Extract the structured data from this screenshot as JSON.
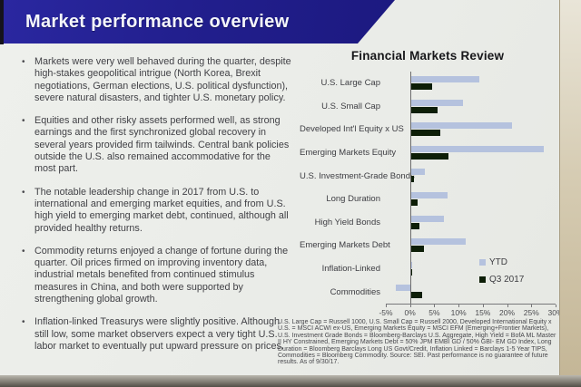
{
  "slide": {
    "title": "Market performance overview",
    "bullets": [
      "Markets were very well behaved during the quarter, despite high-stakes geopolitical intrigue (North Korea, Brexit negotiations, German elections, U.S. political dysfunction), severe natural disasters, and tighter U.S. monetary policy.",
      "Equities and other risky assets performed well, as strong earnings and the first synchronized global recovery in several years provided firm tailwinds. Central bank policies outside the U.S. also remained accommodative for the most part.",
      "The notable leadership change in 2017 from U.S. to international and emerging market equities, and from U.S. high yield to emerging market debt, continued, although all provided healthy returns.",
      "Commodity returns enjoyed a change of fortune during the quarter. Oil prices firmed on improving inventory data, industrial metals benefited from continued stimulus measures in China, and both were supported by strengthening global growth.",
      "Inflation-linked Treasurys were slightly positive. Although still low, some market observers expect a very tight U.S. labor market to eventually put upward pressure on prices."
    ]
  },
  "colors": {
    "banner_blue": "#221f8e",
    "ytd_bar": "#b5c2de",
    "q3_bar": "#0d1e07",
    "slide_background": "#ebede9"
  },
  "footnote": "U.S. Large Cap = Russell 1000, U.S. Small Cap = Russell 2000, Developed International Equity x U.S. = MSCI ACWI ex-US, Emerging Markets Equity = MSCI EFM (Emerging+Frontier Markets), U.S. Investment Grade Bonds = Bloomberg-Barclays U.S. Aggregate, High Yield = BofA ML Master II HY Constrained, Emerging Markets Debt = 50% JPM EMBI GD / 50% GBI- EM GD Index, Long Duration = Bloomberg Barclays Long US Govt/Credit, Inflation Linked = Barclays 1-5 Year TIPS, Commodities = Bloomberg Commodity. Source: SEI. Past performance is no guarantee of future results. As of 9/30/17.",
  "chart_data": {
    "type": "bar",
    "orientation": "horizontal",
    "title": "Financial Markets Review",
    "categories": [
      "U.S. Large Cap",
      "U.S. Small Cap",
      "Developed Int'l Equity x US",
      "Emerging Markets Equity",
      "U.S. Investment-Grade Bonds",
      "Long Duration",
      "High Yield Bonds",
      "Emerging Markets Debt",
      "Inflation-Linked",
      "Commodities"
    ],
    "series": [
      {
        "name": "YTD",
        "color": "#b5c2de",
        "values": [
          14.2,
          10.9,
          21.1,
          27.6,
          3.1,
          7.7,
          7.0,
          11.4,
          0.5,
          -2.9
        ]
      },
      {
        "name": "Q3 2017",
        "color": "#0d1e07",
        "values": [
          4.5,
          5.7,
          6.2,
          7.9,
          0.8,
          1.5,
          2.0,
          2.9,
          0.4,
          2.5
        ]
      }
    ],
    "xlim": [
      -5,
      30
    ],
    "ticks": [
      {
        "value": -5,
        "label": "-5%"
      },
      {
        "value": 0,
        "label": "0%"
      },
      {
        "value": 5,
        "label": "5%"
      },
      {
        "value": 10,
        "label": "10%"
      },
      {
        "value": 15,
        "label": "15%"
      },
      {
        "value": 20,
        "label": "20%"
      },
      {
        "value": 25,
        "label": "25%"
      },
      {
        "value": 30,
        "label": "30%"
      }
    ],
    "grid": false,
    "legend_position": "inside-bottom-right",
    "value_unit": "%"
  }
}
